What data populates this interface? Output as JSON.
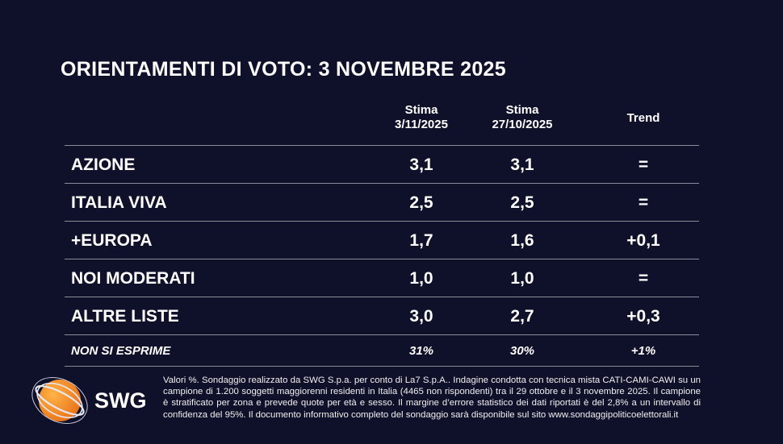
{
  "title": "ORIENTAMENTI DI VOTO: 3 NOVEMBRE 2025",
  "columns": [
    {
      "line1": "Stima",
      "line2": "3/11/2025"
    },
    {
      "line1": "Stima",
      "line2": "27/10/2025"
    },
    {
      "line1": "Trend",
      "line2": ""
    }
  ],
  "rows": [
    {
      "party": "AZIONE",
      "current": "3,1",
      "previous": "3,1",
      "trend": "="
    },
    {
      "party": "ITALIA VIVA",
      "current": "2,5",
      "previous": "2,5",
      "trend": "="
    },
    {
      "party": "+EUROPA",
      "current": "1,7",
      "previous": "1,6",
      "trend": "+0,1"
    },
    {
      "party": "NOI MODERATI",
      "current": "1,0",
      "previous": "1,0",
      "trend": "="
    },
    {
      "party": "ALTRE LISTE",
      "current": "3,0",
      "previous": "2,7",
      "trend": "+0,3"
    }
  ],
  "abstain": {
    "party": "NON SI ESPRIME",
    "current": "31%",
    "previous": "30%",
    "trend": "+1%"
  },
  "logo": {
    "text": "SWG",
    "accent": "#f28c1e"
  },
  "note": "Valori %. Sondaggio realizzato da SWG S.p.a. per conto di La7 S.p.A.. Indagine condotta con tecnica mista CATI-CAMI-CAWI su un campione di 1.200 soggetti maggiorenni residenti in Italia (4465 non rispondenti) tra il 29 ottobre e il 3 novembre 2025. Il campione è stratificato per zona e prevede quote per età e sesso. Il margine d’errore statistico dei dati riportati è del 2,8% a un intervallo di confidenza del 95%. Il documento informativo completo del sondaggio sarà disponibile sul sito www.sondaggipoliticoelettorali.it"
}
